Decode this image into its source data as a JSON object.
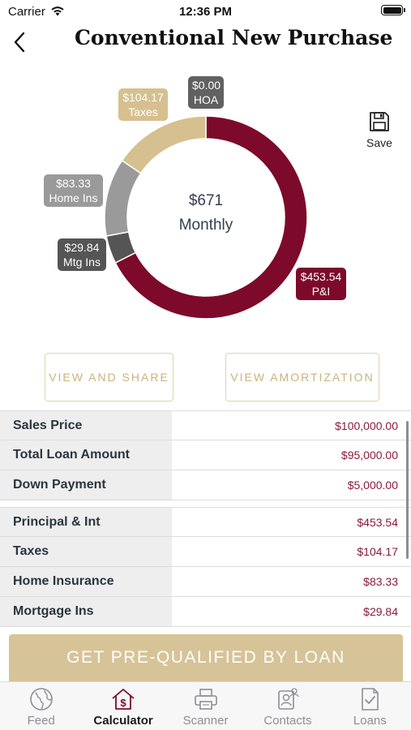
{
  "status_bar": {
    "carrier": "Carrier",
    "time": "12:36 PM"
  },
  "nav": {
    "title": "Conventional New Purchase"
  },
  "chart": {
    "center_amount": "$671",
    "center_label": "Monthly",
    "save_label": "Save",
    "callouts": {
      "hoa": {
        "amount": "$0.00",
        "label": "HOA"
      },
      "taxes": {
        "amount": "$104.17",
        "label": "Taxes"
      },
      "home_ins": {
        "amount": "$83.33",
        "label": "Home Ins"
      },
      "mtg_ins": {
        "amount": "$29.84",
        "label": "Mtg Ins"
      },
      "pi": {
        "amount": "$453.54",
        "label": "P&I"
      }
    },
    "colors": {
      "pi": "#7d0a2a",
      "mtg_ins": "#555555",
      "home_ins": "#9a9a9a",
      "taxes": "#d6c08f",
      "hoa": "#616161"
    }
  },
  "chart_data": {
    "type": "pie",
    "categories": [
      "P&I",
      "Mtg Ins",
      "Home Ins",
      "Taxes",
      "HOA"
    ],
    "values": [
      453.54,
      29.84,
      83.33,
      104.17,
      0.0
    ]
  },
  "buttons": {
    "view_share": "VIEW AND SHARE",
    "view_amortization": "VIEW AMORTIZATION",
    "cta": "GET PRE-QUALIFIED BY LOAN"
  },
  "loan_table": [
    {
      "label": "Sales Price",
      "value": "$100,000.00"
    },
    {
      "label": "Total Loan Amount",
      "value": "$95,000.00"
    },
    {
      "label": "Down Payment",
      "value": "$5,000.00"
    }
  ],
  "payment_table": [
    {
      "label": "Principal & Int",
      "value": "$453.54"
    },
    {
      "label": "Taxes",
      "value": "$104.17"
    },
    {
      "label": "Home Insurance",
      "value": "$83.33"
    },
    {
      "label": "Mortgage Ins",
      "value": "$29.84"
    }
  ],
  "tabbar": {
    "active": "calculator",
    "items": [
      {
        "label": "Feed",
        "icon": "globe-icon"
      },
      {
        "label": "Calculator",
        "icon": "house-dollar-icon"
      },
      {
        "label": "Scanner",
        "icon": "printer-icon"
      },
      {
        "label": "Contacts",
        "icon": "contacts-icon"
      },
      {
        "label": "Loans",
        "icon": "document-check-icon"
      }
    ]
  }
}
